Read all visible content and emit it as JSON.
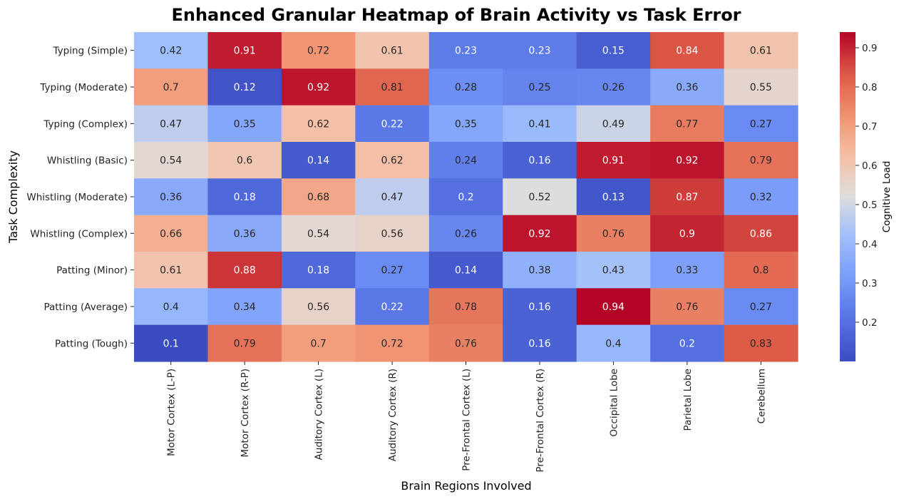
{
  "chart_data": {
    "type": "heatmap",
    "title": "Enhanced Granular Heatmap of Brain Activity vs Task Error",
    "xlabel": "Brain Regions Involved",
    "ylabel": "Task Complexity",
    "colorbar_label": "Cognitive Load",
    "colormap": "coolwarm",
    "vmin": 0.1,
    "vmax": 0.94,
    "colorbar_ticks": [
      "0.2",
      "0.3",
      "0.4",
      "0.5",
      "0.6",
      "0.7",
      "0.8",
      "0.9"
    ],
    "x_categories": [
      "Motor Cortex (L-P)",
      "Motor Cortex (R-P)",
      "Auditory Cortex (L)",
      "Auditory Cortex (R)",
      "Pre-Frontal Cortex (L)",
      "Pre-Frontal Cortex (R)",
      "Occipital Lobe",
      "Parietal Lobe",
      "Cerebellum"
    ],
    "y_categories": [
      "Typing (Simple)",
      "Typing (Moderate)",
      "Typing (Complex)",
      "Whistling (Basic)",
      "Whistling (Moderate)",
      "Whistling (Complex)",
      "Patting (Minor)",
      "Patting (Average)",
      "Patting (Tough)"
    ],
    "values": [
      [
        0.42,
        0.91,
        0.72,
        0.61,
        0.23,
        0.23,
        0.15,
        0.84,
        0.61
      ],
      [
        0.7,
        0.12,
        0.92,
        0.81,
        0.28,
        0.25,
        0.26,
        0.36,
        0.55
      ],
      [
        0.47,
        0.35,
        0.62,
        0.22,
        0.35,
        0.41,
        0.49,
        0.77,
        0.27
      ],
      [
        0.54,
        0.6,
        0.14,
        0.62,
        0.24,
        0.16,
        0.91,
        0.92,
        0.79
      ],
      [
        0.36,
        0.18,
        0.68,
        0.47,
        0.2,
        0.52,
        0.13,
        0.87,
        0.32
      ],
      [
        0.66,
        0.36,
        0.54,
        0.56,
        0.26,
        0.92,
        0.76,
        0.9,
        0.86
      ],
      [
        0.61,
        0.88,
        0.18,
        0.27,
        0.14,
        0.38,
        0.43,
        0.33,
        0.8
      ],
      [
        0.4,
        0.34,
        0.56,
        0.22,
        0.78,
        0.16,
        0.94,
        0.76,
        0.27
      ],
      [
        0.1,
        0.79,
        0.7,
        0.72,
        0.76,
        0.16,
        0.4,
        0.2,
        0.83
      ]
    ]
  }
}
